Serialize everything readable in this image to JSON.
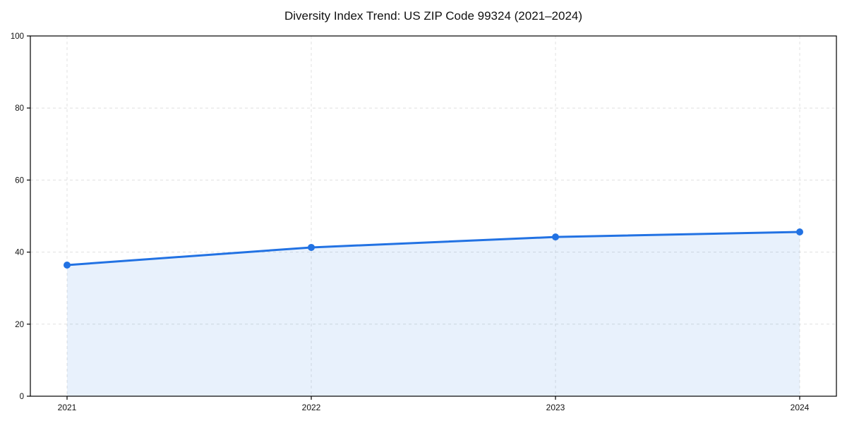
{
  "chart_data": {
    "type": "area",
    "title": "Diversity Index Trend: US ZIP Code 99324 (2021–2024)",
    "categories": [
      "2021",
      "2022",
      "2023",
      "2024"
    ],
    "series": [
      {
        "name": "Diversity Index",
        "values": [
          36.4,
          41.3,
          44.2,
          45.6
        ]
      }
    ],
    "xlabel": "",
    "ylabel": "",
    "ylim": [
      0,
      100
    ],
    "yticks": [
      0,
      20,
      40,
      60,
      80,
      100
    ],
    "grid": true,
    "grid_style": "dashed",
    "legend_position": "none",
    "marker": "circle",
    "colors": {
      "line": "#2272e3",
      "marker": "#2272e3",
      "fill": "#2272e3",
      "fill_opacity": 0.1,
      "gridline": "#e0e0e0",
      "spine": "#000000",
      "text": "#111111",
      "background": "#ffffff"
    }
  }
}
